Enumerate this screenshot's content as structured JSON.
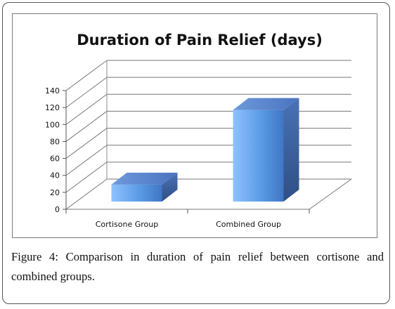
{
  "chart_data": {
    "type": "bar",
    "title": "Duration of Pain Relief (days)",
    "categories": [
      "Cortisone Group",
      "Combined Group"
    ],
    "values": [
      20,
      108
    ],
    "ylim": [
      0,
      140
    ],
    "yticks": [
      "0",
      "20",
      "40",
      "60",
      "80",
      "100",
      "120",
      "140"
    ],
    "xlabel": "",
    "ylabel": "",
    "grid": true,
    "style": "3d-column",
    "colors": {
      "bar_front": "#5b9be6",
      "bar_top": "#4f7fcf",
      "bar_side": "#3f68a8"
    }
  },
  "caption": {
    "label": "Figure 4:",
    "text": "Comparison in duration of pain relief between cortisone and combined groups."
  }
}
